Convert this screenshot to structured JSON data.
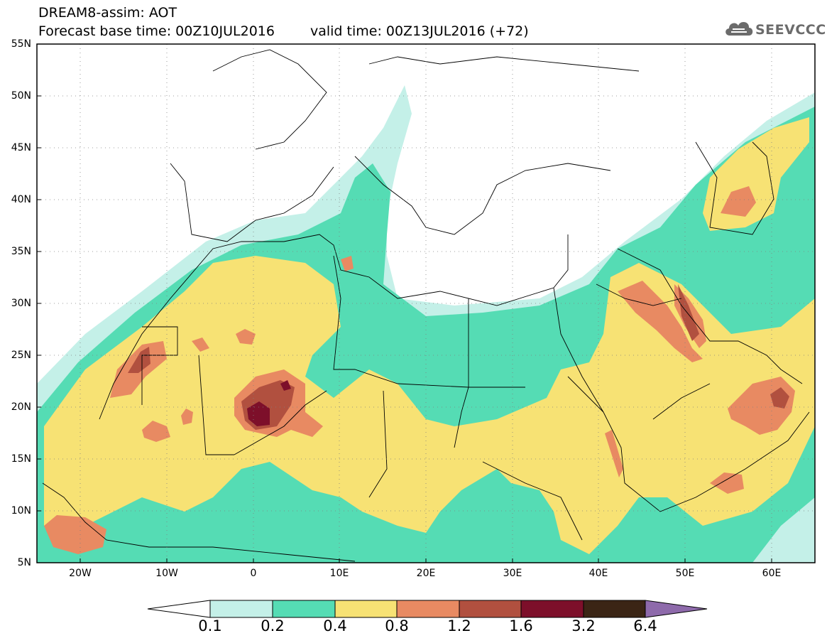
{
  "title": {
    "line1": "DREAM8-assim: AOT",
    "base": "Forecast base time: 00Z10JUL2016",
    "valid": "valid time: 00Z13JUL2016 (+72)"
  },
  "logo": {
    "text": "SEEVCCC",
    "icon": "cloud-icon"
  },
  "map": {
    "lat_labels": [
      "55N",
      "50N",
      "45N",
      "40N",
      "35N",
      "30N",
      "25N",
      "20N",
      "15N",
      "10N",
      "5N"
    ],
    "lon_labels": [
      "20W",
      "10W",
      "0",
      "10E",
      "20E",
      "30E",
      "40E",
      "50E",
      "60E"
    ],
    "lat_range": [
      5,
      55
    ],
    "lon_range": [
      -25,
      65
    ],
    "grid": "dotted"
  },
  "colorbar": {
    "labels": [
      "0.1",
      "0.2",
      "0.4",
      "0.8",
      "1.2",
      "1.6",
      "3.2",
      "6.4"
    ],
    "colors": [
      "#c4f0e8",
      "#55dcb4",
      "#f7e274",
      "#e88a62",
      "#b1503f",
      "#7d0f2a",
      "#3b2515",
      "#8e6aab"
    ]
  }
}
